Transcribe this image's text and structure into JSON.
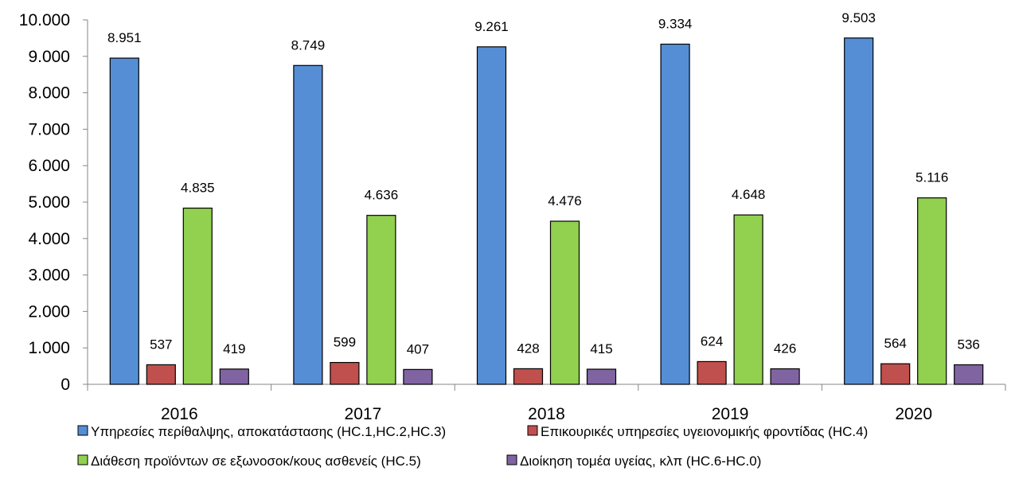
{
  "chart_data": {
    "type": "bar",
    "categories": [
      "2016",
      "2017",
      "2018",
      "2019",
      "2020"
    ],
    "series": [
      {
        "name": "Υπηρεσίες περίθαλψης, αποκατάστασης (HC.1,HC.2,HC.3)",
        "values": [
          8951,
          8749,
          9261,
          9334,
          9503
        ],
        "labels": [
          "8.951",
          "8.749",
          "9.261",
          "9.334",
          "9.503"
        ],
        "color": "#558ED5"
      },
      {
        "name": "Επικουρικές υπηρεσίες υγειονομικής φροντίδας (HC.4)",
        "values": [
          537,
          599,
          428,
          624,
          564
        ],
        "labels": [
          "537",
          "599",
          "428",
          "624",
          "564"
        ],
        "color": "#C0504D"
      },
      {
        "name": "Διάθεση προϊόντων σε εξωνοσοκ/κους ασθενείς (HC.5)",
        "values": [
          4835,
          4636,
          4476,
          4648,
          5116
        ],
        "labels": [
          "4.835",
          "4.636",
          "4.476",
          "4.648",
          "5.116"
        ],
        "color": "#92D050"
      },
      {
        "name": "Διοίκηση τομέα υγείας, κλπ (HC.6-HC.0)",
        "values": [
          419,
          407,
          415,
          426,
          536
        ],
        "labels": [
          "419",
          "407",
          "415",
          "426",
          "536"
        ],
        "color": "#8064A2"
      }
    ],
    "ylim": [
      0,
      10000
    ],
    "yticks": [
      0,
      1000,
      2000,
      3000,
      4000,
      5000,
      6000,
      7000,
      8000,
      9000,
      10000
    ],
    "ytick_labels": [
      "0",
      "1.000",
      "2.000",
      "3.000",
      "4.000",
      "5.000",
      "6.000",
      "7.000",
      "8.000",
      "9.000",
      "10.000"
    ],
    "grid": false,
    "legend_position": "bottom",
    "title": "",
    "xlabel": "",
    "ylabel": ""
  }
}
